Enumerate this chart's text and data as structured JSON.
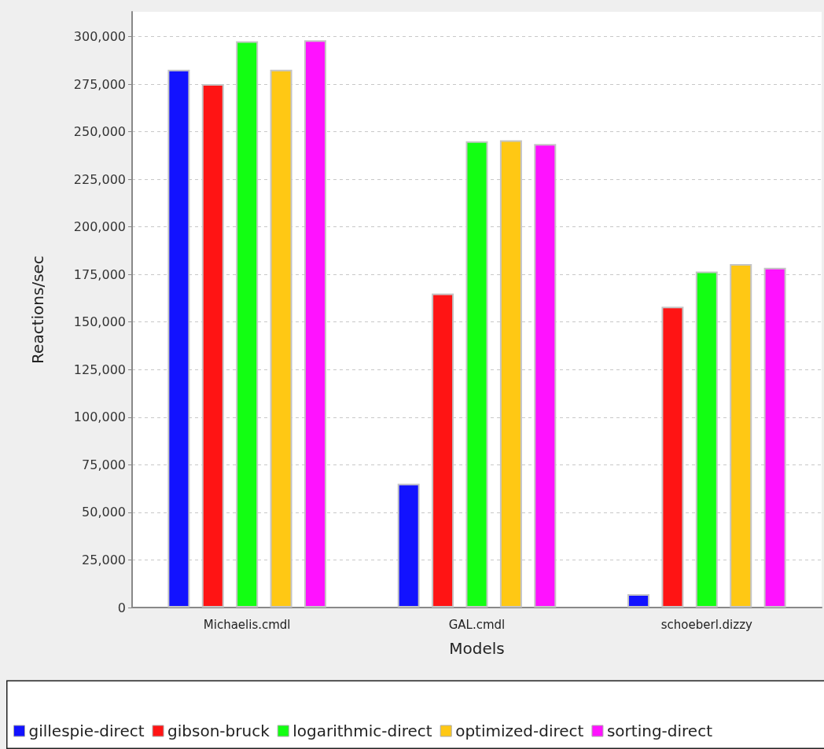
{
  "chart_data": {
    "type": "bar",
    "xlabel": "Models",
    "ylabel": "Reactions/sec",
    "categories": [
      "Michaelis.cmdl",
      "GAL.cmdl",
      "schoeberl.dizzy"
    ],
    "series": [
      {
        "name": "gillespie-direct",
        "color": "#1212ff",
        "values": [
          282500,
          65000,
          7000
        ]
      },
      {
        "name": "gibson-bruck",
        "color": "#ff1414",
        "values": [
          275000,
          165000,
          158000
        ]
      },
      {
        "name": "logarithmic-direct",
        "color": "#12ff12",
        "values": [
          297500,
          245000,
          176500
        ]
      },
      {
        "name": "optimized-direct",
        "color": "#ffc814",
        "values": [
          282500,
          245500,
          180500
        ]
      },
      {
        "name": "sorting-direct",
        "color": "#ff12ff",
        "values": [
          298000,
          243500,
          178500
        ]
      }
    ],
    "ylim": [
      0,
      313000
    ],
    "yticks": [
      0,
      {
        "value": 25000,
        "label": "25,000"
      },
      {
        "value": 50000,
        "label": "50,000"
      },
      {
        "value": 75000,
        "label": "75,000"
      },
      {
        "value": 100000,
        "label": "100,000"
      },
      {
        "value": 125000,
        "label": "125,000"
      },
      {
        "value": 150000,
        "label": "150,000"
      },
      {
        "value": 175000,
        "label": "175,000"
      },
      {
        "value": 200000,
        "label": "200,000"
      },
      {
        "value": 225000,
        "label": "225,000"
      },
      {
        "value": 250000,
        "label": "250,000"
      },
      {
        "value": 275000,
        "label": "275,000"
      },
      {
        "value": 300000,
        "label": "300,000"
      }
    ],
    "grid": "y",
    "legend": "bottom"
  }
}
